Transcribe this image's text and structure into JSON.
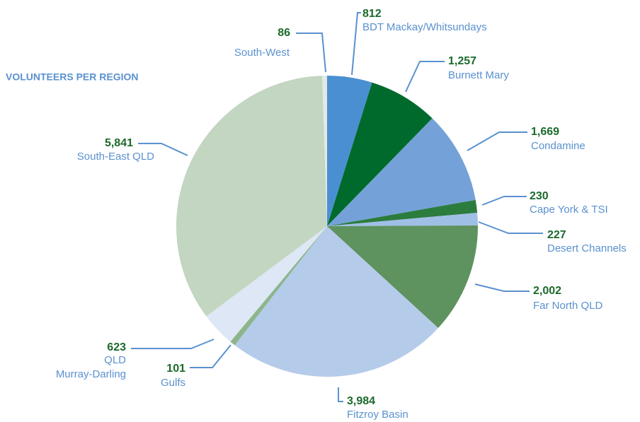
{
  "chart_data": {
    "type": "pie",
    "title": "VOLUNTEERS PER REGION",
    "categories": [
      "BDT Mackay/Whitsundays",
      "Burnett Mary",
      "Condamine",
      "Cape York & TSI",
      "Desert Channels",
      "Far North QLD",
      "Fitzroy Basin",
      "Gulfs",
      "QLD\nMurray-Darling",
      "South-East QLD",
      "South-West"
    ],
    "values": [
      812,
      1257,
      1669,
      230,
      227,
      2002,
      3984,
      101,
      623,
      5841,
      86
    ],
    "value_labels": [
      "812",
      "1,257",
      "1,669",
      "230",
      "227",
      "2,002",
      "3,984",
      "101",
      "623",
      "5,841",
      "86"
    ],
    "colors": [
      "#4a8fd1",
      "#006a2c",
      "#74a2d8",
      "#2c7c3e",
      "#a0bfe7",
      "#5e925f",
      "#b5cbea",
      "#8db58c",
      "#dde7f5",
      "#c2d6c1",
      "#e2eae6"
    ]
  }
}
